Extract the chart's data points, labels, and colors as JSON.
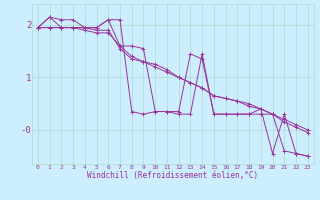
{
  "xlabel": "Windchill (Refroidissement éolien,°C)",
  "background_color": "#cceeff",
  "grid_color": "#aaddcc",
  "line_color": "#993399",
  "series": [
    [
      1.95,
      2.15,
      1.95,
      1.95,
      1.95,
      1.95,
      2.1,
      2.1,
      0.35,
      0.3,
      0.35,
      0.35,
      0.35,
      1.45,
      1.35,
      0.3,
      0.3,
      0.3,
      0.3,
      0.4,
      -0.45,
      0.3,
      -0.45,
      -0.5
    ],
    [
      1.95,
      2.15,
      2.1,
      2.1,
      1.95,
      1.95,
      2.1,
      1.6,
      1.6,
      1.55,
      0.35,
      0.35,
      0.3,
      0.3,
      1.45,
      0.3,
      0.3,
      0.3,
      0.3,
      0.3,
      0.3,
      -0.4,
      -0.45,
      -0.5
    ],
    [
      1.95,
      1.95,
      1.95,
      1.95,
      1.95,
      1.9,
      1.9,
      1.55,
      1.35,
      1.3,
      1.25,
      1.15,
      1.0,
      0.9,
      0.8,
      0.65,
      0.6,
      0.55,
      0.45,
      0.4,
      0.3,
      0.15,
      0.05,
      -0.05
    ],
    [
      1.95,
      1.95,
      1.95,
      1.95,
      1.9,
      1.85,
      1.85,
      1.6,
      1.4,
      1.3,
      1.2,
      1.1,
      1.0,
      0.9,
      0.8,
      0.65,
      0.6,
      0.55,
      0.5,
      0.4,
      0.3,
      0.2,
      0.1,
      0.0
    ]
  ],
  "xlim": [
    -0.5,
    23.5
  ],
  "ylim": [
    -0.65,
    2.4
  ],
  "xticks": [
    0,
    1,
    2,
    3,
    4,
    5,
    6,
    7,
    8,
    9,
    10,
    11,
    12,
    13,
    14,
    15,
    16,
    17,
    18,
    19,
    20,
    21,
    22,
    23
  ],
  "yticks": [
    0.0,
    1.0,
    2.0
  ],
  "ytick_labels": [
    "-0",
    "1",
    "2"
  ],
  "xtick_fontsize": 4.5,
  "ytick_fontsize": 6.5,
  "xlabel_fontsize": 5.5,
  "linewidth": 0.7,
  "markersize": 2.5
}
